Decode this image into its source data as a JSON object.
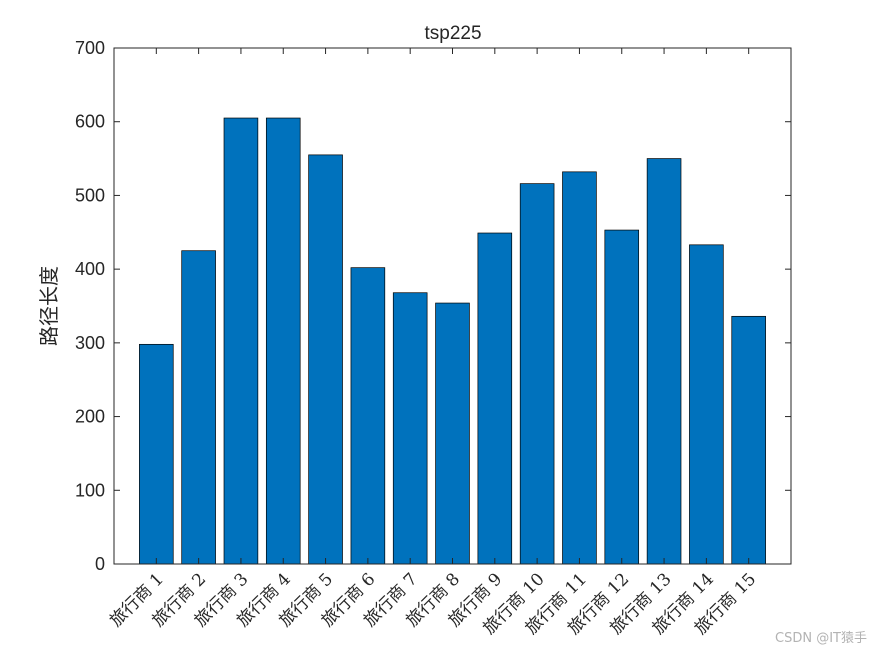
{
  "chart_data": {
    "type": "bar",
    "title": "tsp225",
    "xlabel": "",
    "ylabel": "路径长度",
    "categories": [
      "旅行商 1",
      "旅行商 2",
      "旅行商 3",
      "旅行商 4",
      "旅行商 5",
      "旅行商 6",
      "旅行商 7",
      "旅行商 8",
      "旅行商 9",
      "旅行商 10",
      "旅行商 11",
      "旅行商 12",
      "旅行商 13",
      "旅行商 14",
      "旅行商 15"
    ],
    "values": [
      298,
      425,
      605,
      605,
      555,
      402,
      368,
      354,
      449,
      516,
      532,
      453,
      550,
      433,
      336
    ],
    "ylim": [
      0,
      700
    ],
    "yticks": [
      0,
      100,
      200,
      300,
      400,
      500,
      600,
      700
    ],
    "bar_color": "#0072BD",
    "grid": false,
    "legend": "none"
  },
  "watermark": "CSDN @IT猿手"
}
